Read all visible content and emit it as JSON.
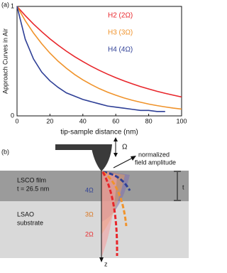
{
  "chart_data": {
    "type": "line",
    "panel_label": "(a)",
    "xlabel": "tip-sample distance (nm)",
    "ylabel": "Approach Curves in Air",
    "x": [
      0,
      5,
      10,
      15,
      20,
      25,
      30,
      35,
      40,
      45,
      50,
      55,
      60,
      65,
      70,
      75,
      80,
      85,
      90,
      95,
      100
    ],
    "series": [
      {
        "name": "H2 (2Ω)",
        "color": "#e8262b",
        "values": [
          1,
          0.916,
          0.839,
          0.769,
          0.704,
          0.645,
          0.591,
          0.541,
          0.496,
          0.454,
          0.416,
          0.381,
          0.349,
          0.32,
          0.293,
          0.268,
          0.246,
          0.225,
          0.206,
          0.189,
          0.173
        ]
      },
      {
        "name": "H3 (3Ω)",
        "color": "#f0932b",
        "values": [
          1,
          0.87,
          0.757,
          0.659,
          0.573,
          0.499,
          0.435,
          0.378,
          0.329,
          0.287,
          0.249,
          0.217,
          0.189,
          0.164,
          0.143,
          0.125,
          0.108,
          0.094,
          0.082,
          0.071,
          0.062
        ]
      },
      {
        "name": "H4 (4Ω)",
        "color": "#2e3f96",
        "values": [
          1,
          0.7,
          0.52,
          0.4,
          0.32,
          0.26,
          0.21,
          0.18,
          0.15,
          0.13,
          0.11,
          0.09,
          0.08,
          0.07,
          0.06,
          0.05,
          0.05,
          0.04,
          0.04,
          null,
          null
        ]
      }
    ],
    "xlim": [
      0,
      100
    ],
    "xticks": [
      0,
      20,
      40,
      60,
      80,
      100
    ],
    "ylim": [
      0,
      1
    ],
    "yticks": [
      0,
      1
    ]
  },
  "diagram": {
    "panel_label": "(b)",
    "omega": "Ω",
    "field_label": [
      "normalized",
      "field amplitude"
    ],
    "film": [
      "LSCO film",
      "t = 26.5 nm"
    ],
    "substrate": [
      "LSAO",
      "substrate"
    ],
    "thickness": "t",
    "curves": [
      "4Ω",
      "3Ω",
      "2Ω"
    ],
    "z": "z"
  }
}
